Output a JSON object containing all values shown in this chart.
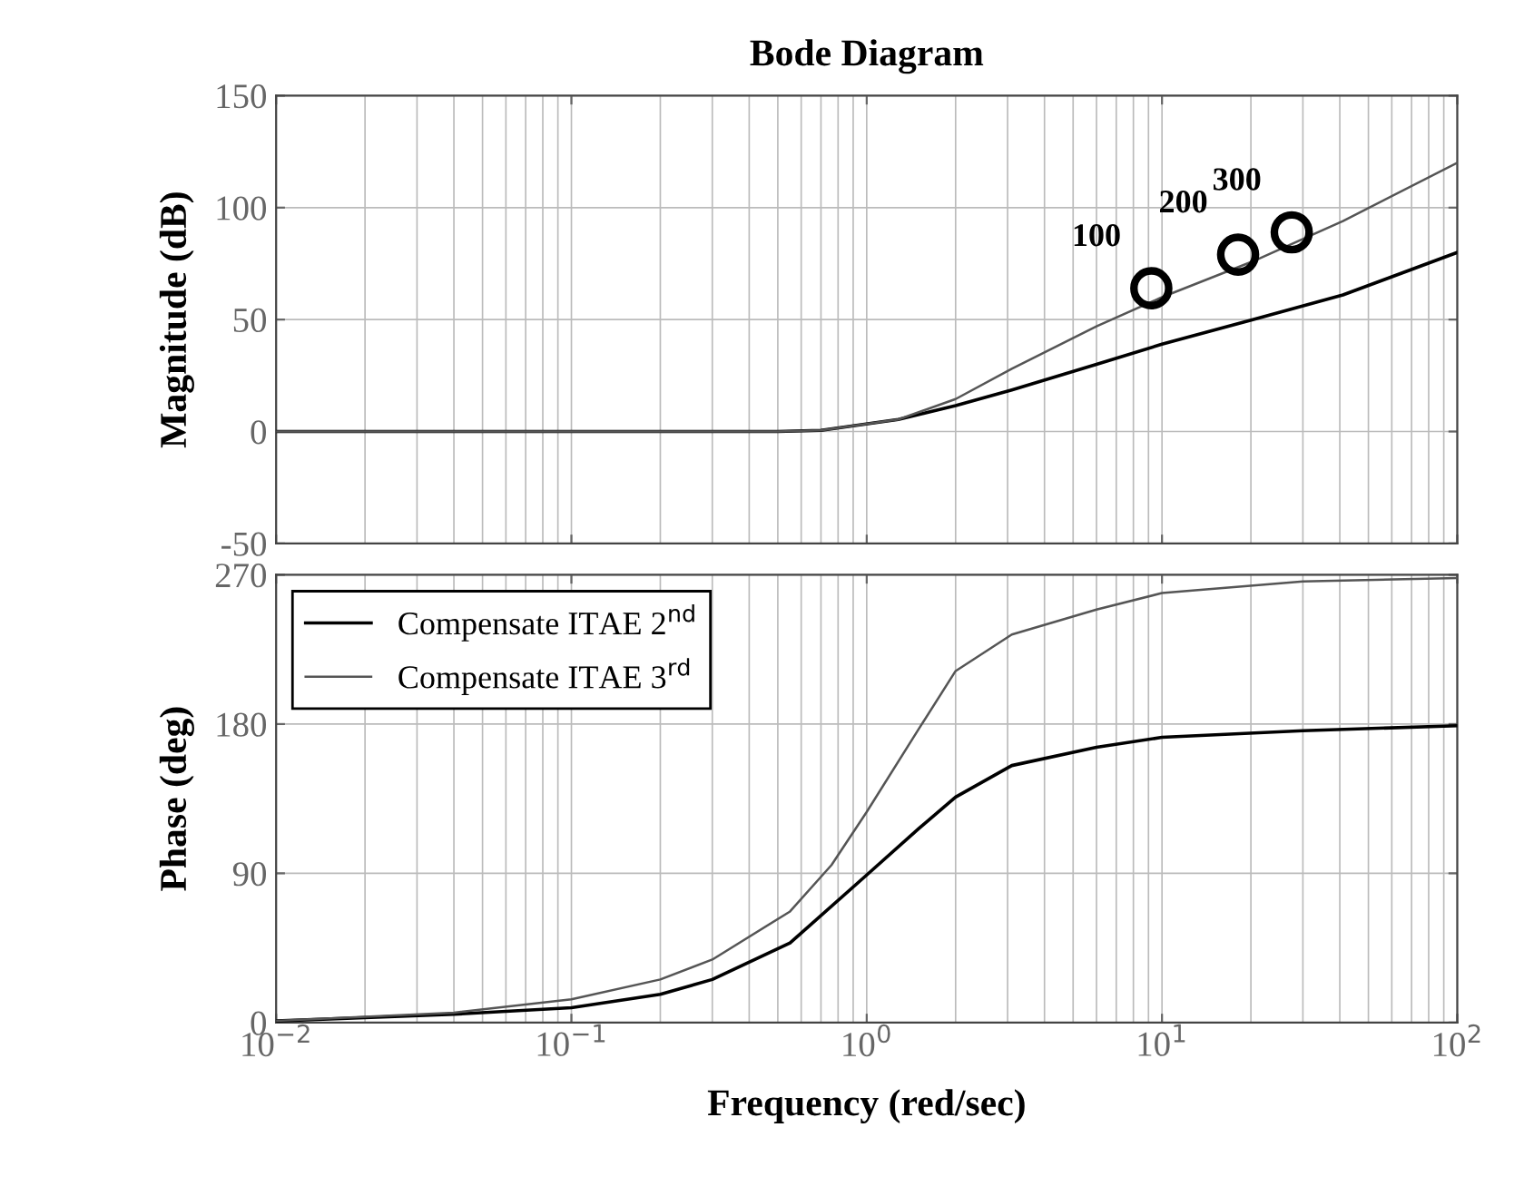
{
  "chart_data": [
    {
      "type": "line",
      "title": "Bode Diagram",
      "ylabel": "Magnitude (dB)",
      "log": "x",
      "xlim": [
        0.01,
        100
      ],
      "xticks": [
        {
          "value": 0.01,
          "label": null
        },
        {
          "value": 0.1,
          "label": null
        },
        {
          "value": 1,
          "label": null
        },
        {
          "value": 10,
          "label": null
        },
        {
          "value": 100,
          "label": null
        }
      ],
      "ylim": [
        -50,
        150
      ],
      "yticks": [
        -50,
        0,
        50,
        100,
        150
      ],
      "tick_labels": "y",
      "grid": true,
      "series": [
        {
          "color": "#000000",
          "x": [
            0.01,
            0.1,
            0.5,
            0.7,
            1.28,
            2.0,
            3.1,
            6.0,
            10,
            20.3,
            41,
            100
          ],
          "values": [
            0,
            0,
            0,
            0.5,
            5.4,
            11.6,
            18.6,
            30,
            39,
            50,
            61,
            80
          ]
        },
        {
          "color": "#555555",
          "x": [
            0.01,
            0.1,
            0.5,
            0.7,
            1.28,
            2.0,
            3.1,
            6.0,
            10,
            20.3,
            41,
            100
          ],
          "values": [
            0,
            0,
            0,
            0.5,
            5.4,
            14.5,
            28,
            47,
            60,
            76,
            94,
            120
          ]
        },
        {
          "type": "scatter",
          "marker": "circle",
          "color": "#000000",
          "x": [
            9.2,
            18.1,
            27.5
          ],
          "values": [
            64,
            79,
            89
          ]
        }
      ],
      "annotations": [
        {
          "text": "100",
          "x": 9.2,
          "y": 64
        },
        {
          "text": "200",
          "x": 18.1,
          "y": 79
        },
        {
          "text": "300",
          "x": 27.5,
          "y": 89
        }
      ]
    },
    {
      "type": "line",
      "ylabel": "Phase (deg)",
      "xlabel": "Frequency (red/sec)",
      "log": "x",
      "xlim": [
        0.01,
        100
      ],
      "xticks": [
        {
          "value": 0.01,
          "label": "10$^{−2}$"
        },
        {
          "value": 0.1,
          "label": "10$^{−1}$"
        },
        {
          "value": 1,
          "label": "10$^{0}$"
        },
        {
          "value": 10,
          "label": "10$^{1}$"
        },
        {
          "value": 100,
          "label": "10$^{2}$"
        }
      ],
      "ylim": [
        0,
        270
      ],
      "yticks": [
        0,
        90,
        180,
        270
      ],
      "grid": true,
      "legend": "top left",
      "series": [
        {
          "name": "Compensate ITAE 2$^{nd}$",
          "color": "#000000",
          "x": [
            0.01,
            0.04,
            0.1,
            0.2,
            0.3,
            0.55,
            1.0,
            1.5,
            2.0,
            3.1,
            6.0,
            10,
            30,
            100
          ],
          "values": [
            1,
            5,
            9,
            17,
            26,
            48,
            89,
            117,
            136,
            155,
            166,
            172,
            176,
            179
          ]
        },
        {
          "name": "Compensate ITAE 3$^{rd}$",
          "color": "#555555",
          "x": [
            0.01,
            0.04,
            0.1,
            0.2,
            0.3,
            0.55,
            0.76,
            1.0,
            1.5,
            2.0,
            3.1,
            6.0,
            10,
            30,
            100
          ],
          "values": [
            1,
            6,
            14,
            26,
            38,
            67,
            95,
            127,
            177,
            212,
            234,
            249,
            259,
            266,
            268
          ]
        }
      ]
    }
  ]
}
